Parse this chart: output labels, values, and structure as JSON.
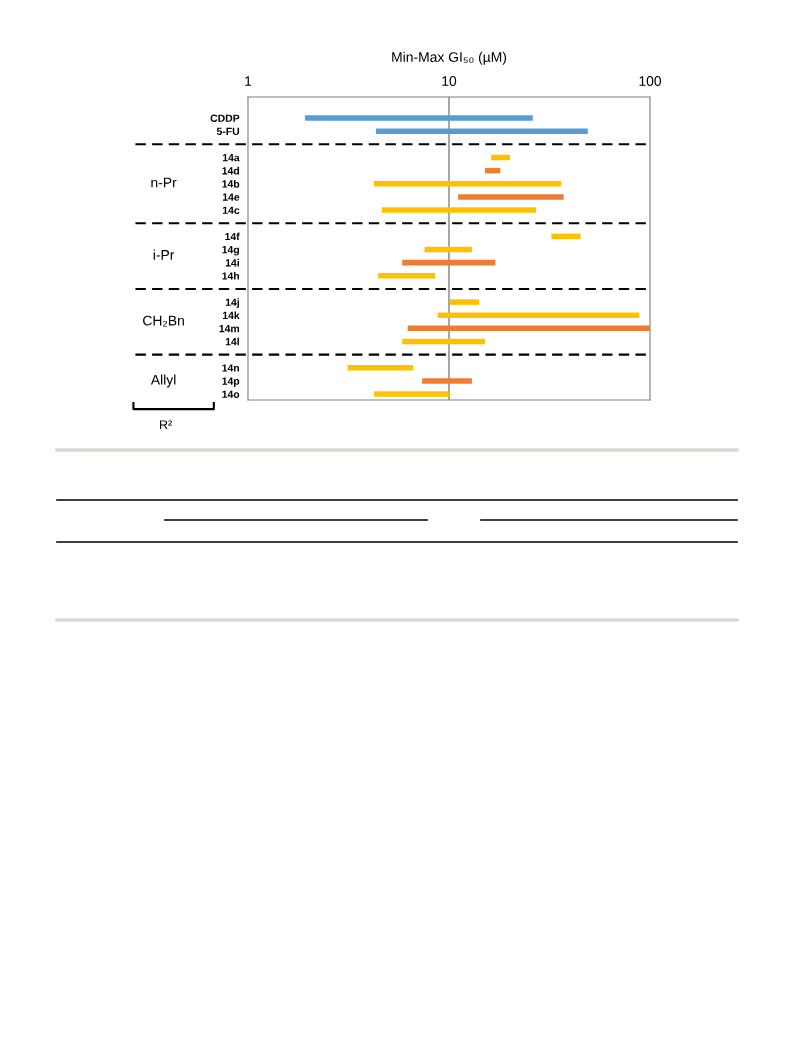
{
  "chart_data": {
    "type": "bar",
    "orientation": "horizontal",
    "log": "x",
    "xlabel": "Min-Max GI₅₀ (µM)",
    "categories": [
      "CDDP",
      "5-FU",
      null,
      "14a",
      "14d",
      "14b",
      "14e",
      "14c",
      null,
      "14f",
      "14g",
      "14i",
      "14h",
      null,
      "14j",
      "14k",
      "14m",
      "14l",
      null,
      "14n",
      "14p",
      "14o"
    ],
    "base": [
      1.92,
      4.33,
      null,
      16.2,
      15.1,
      4.23,
      11.1,
      4.63,
      null,
      32.3,
      7.56,
      5.85,
      4.44,
      null,
      10.1,
      8.78,
      6.23,
      5.85,
      null,
      3.13,
      7.35,
      4.23
    ],
    "values": [
      24.2,
      44.7,
      null,
      3.9,
      2.9,
      32.0,
      26.1,
      22.5,
      null,
      12.8,
      5.44,
      11.15,
      4.1,
      null,
      4.0,
      79.7,
      93.77,
      9.25,
      null,
      3.51,
      5.65,
      5.77
    ],
    "colors": [
      "#5b9bd5",
      "#5b9bd5",
      null,
      "#ffc000",
      "#ed7d31",
      "#ffc000",
      "#ed7d31",
      "#ffc000",
      null,
      "#ffc000",
      "#ffc000",
      "#ed7d31",
      "#ffc000",
      null,
      "#ffc000",
      "#ffc000",
      "#ed7d31",
      "#ffc000",
      null,
      "#ffc000",
      "#ed7d31",
      "#ffc000"
    ],
    "xlim": [
      1,
      100
    ],
    "xticks": [
      1,
      10,
      100
    ],
    "grid": "y",
    "ref_lines": [
      {
        "axis": "x",
        "value": 10,
        "color": "#808080",
        "line_style": "solid"
      }
    ],
    "annotations": [
      "n-Pr",
      "i-Pr",
      "CH₂Bn",
      "Allyl",
      "R²"
    ]
  }
}
